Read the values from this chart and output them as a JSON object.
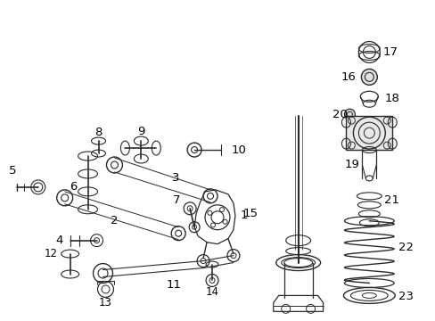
{
  "bg_color": "#ffffff",
  "fig_width": 4.89,
  "fig_height": 3.6,
  "dpi": 100,
  "line_color": "#2a2a2a",
  "label_color": "#000000",
  "font_size": 9.5,
  "font_size_sm": 8.5
}
